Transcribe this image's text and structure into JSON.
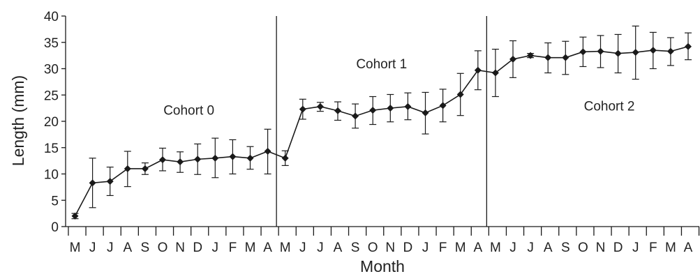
{
  "chart_data": {
    "type": "line",
    "title": "",
    "xlabel": "Month",
    "ylabel": "Length (mm)",
    "ylim": [
      0,
      40
    ],
    "yticks": [
      0,
      5,
      10,
      15,
      20,
      25,
      30,
      35,
      40
    ],
    "grid": false,
    "categories": [
      "M",
      "J",
      "J",
      "A",
      "S",
      "O",
      "N",
      "D",
      "J",
      "F",
      "M",
      "A",
      "M",
      "J",
      "J",
      "A",
      "S",
      "O",
      "N",
      "D",
      "J",
      "F",
      "M",
      "A",
      "M",
      "J",
      "J",
      "A",
      "S",
      "O",
      "N",
      "D",
      "J",
      "F",
      "M",
      "A"
    ],
    "values": [
      2.0,
      8.3,
      8.6,
      11.0,
      11.0,
      12.7,
      12.3,
      12.8,
      13.0,
      13.3,
      13.0,
      14.3,
      13.0,
      22.3,
      22.8,
      22.0,
      21.0,
      22.1,
      22.5,
      22.8,
      21.6,
      23.0,
      25.1,
      29.7,
      29.2,
      31.8,
      32.5,
      32.1,
      32.1,
      33.2,
      33.3,
      32.9,
      33.1,
      33.5,
      33.3,
      34.2
    ],
    "error_low": [
      1.5,
      3.6,
      5.9,
      7.6,
      9.9,
      10.6,
      10.3,
      9.9,
      9.3,
      10.0,
      10.9,
      10.0,
      11.6,
      20.4,
      21.9,
      20.2,
      18.7,
      19.4,
      19.9,
      20.3,
      17.6,
      19.9,
      21.1,
      26.0,
      24.7,
      28.3,
      32.1,
      29.2,
      28.9,
      30.4,
      30.2,
      29.2,
      28.0,
      30.0,
      30.6,
      31.7
    ],
    "error_high": [
      2.5,
      13.0,
      11.3,
      14.3,
      12.1,
      14.9,
      14.2,
      15.7,
      16.8,
      16.5,
      15.2,
      18.5,
      14.4,
      24.2,
      23.6,
      23.7,
      23.3,
      24.7,
      25.1,
      25.4,
      25.5,
      26.1,
      29.1,
      33.4,
      33.7,
      35.3,
      32.9,
      34.9,
      35.2,
      36.0,
      36.3,
      36.5,
      38.1,
      36.9,
      35.9,
      36.8
    ],
    "dividers_after_index": [
      11,
      23
    ],
    "annotations": [
      {
        "text": "Cohort 0",
        "x_index": 6.5,
        "y": 22.2
      },
      {
        "text": "Cohort 1",
        "x_index": 17.5,
        "y": 31.0
      },
      {
        "text": "Cohort 2",
        "x_index": 30.5,
        "y": 23.0
      }
    ],
    "marker": "diamond",
    "color": "#1a1a1a"
  }
}
